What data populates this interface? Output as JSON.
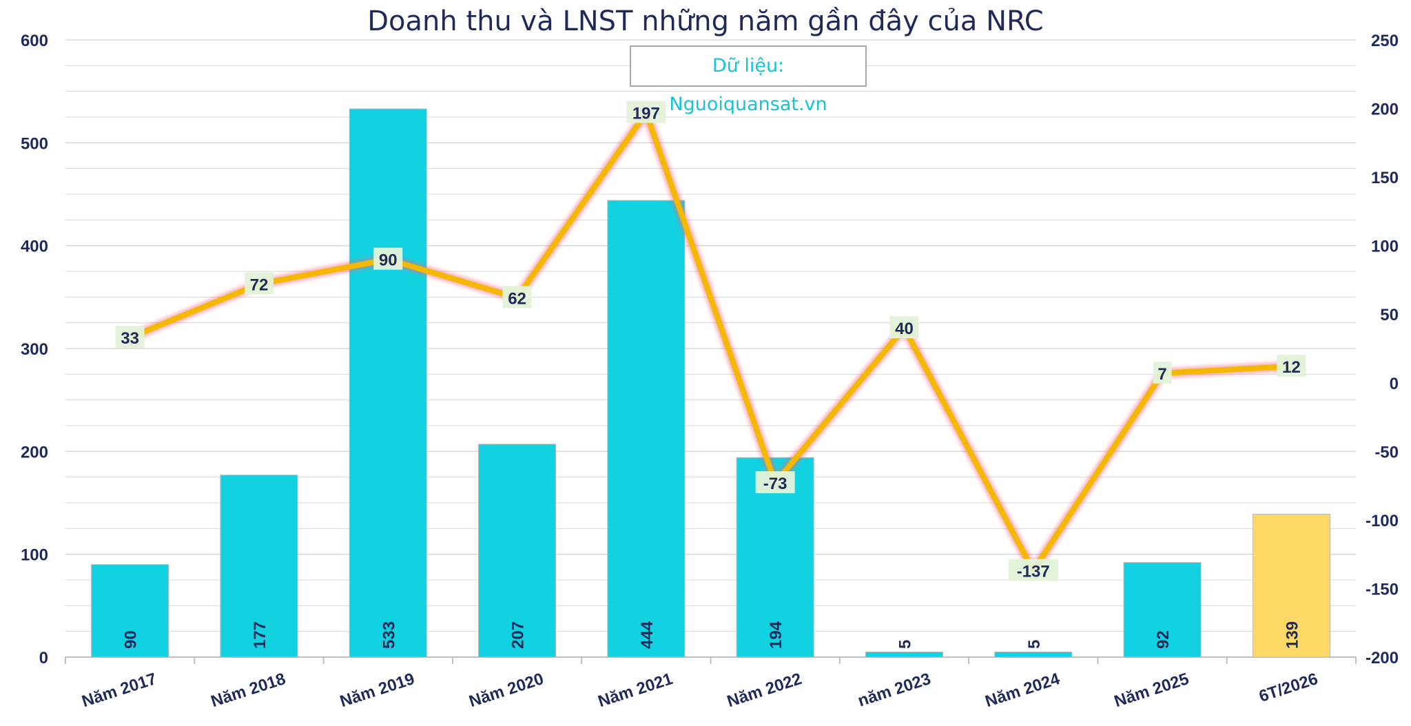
{
  "title": "Doanh thu và LNST những năm gần đây của NRC",
  "source_note": "Dữ liệu: Nguoiquansat.vn",
  "colors": {
    "bar": "#12d1e0",
    "bar_highlight": "#ffd966",
    "line": "#f5b800",
    "line_glow": "#f06a7a",
    "label_bg": "#e4f2d8",
    "text": "#1f2a5a",
    "grid": "#d9d9d9"
  },
  "chart_data": {
    "type": "bar",
    "categories": [
      "Năm 2017",
      "Năm 2018",
      "Năm 2019",
      "Năm 2020",
      "Năm 2021",
      "Năm 2022",
      "năm 2023",
      "Năm 2024",
      "Năm 2025",
      "6T/2026"
    ],
    "series": [
      {
        "type": "bar",
        "axis": "left",
        "values": [
          90,
          177,
          533,
          207,
          444,
          194,
          5,
          5,
          92,
          139
        ],
        "highlight_last": true
      },
      {
        "type": "line",
        "axis": "right",
        "values": [
          33,
          72,
          90,
          62,
          197,
          -73,
          40,
          -137,
          7,
          12
        ]
      }
    ],
    "y_left": {
      "min": 0,
      "max": 600,
      "ticks": [
        0,
        100,
        200,
        300,
        400,
        500,
        600
      ]
    },
    "y_right": {
      "min": -200,
      "max": 250,
      "ticks": [
        -200,
        -150,
        -100,
        -50,
        0,
        50,
        100,
        150,
        200,
        250
      ]
    },
    "grid": true,
    "legend": "none"
  }
}
